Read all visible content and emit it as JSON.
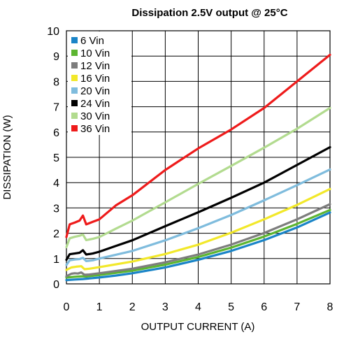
{
  "chart_data": {
    "type": "line",
    "title": "Dissipation 2.5V output @ 25°C",
    "xlabel": "OUTPUT CURRENT (A)",
    "ylabel": "DISSIPATION (W)",
    "xlim": [
      0,
      8
    ],
    "ylim": [
      0,
      10
    ],
    "xticks": [
      0,
      1,
      2,
      3,
      4,
      5,
      6,
      7,
      8
    ],
    "yticks": [
      0,
      1,
      2,
      3,
      4,
      5,
      6,
      7,
      8,
      9,
      10
    ],
    "grid": true,
    "legend_position": "top-left",
    "series": [
      {
        "name": "6 Vin",
        "color": "#1a84c7",
        "points": [
          [
            0.0,
            0.15
          ],
          [
            0.25,
            0.17
          ],
          [
            0.5,
            0.19
          ],
          [
            1.0,
            0.25
          ],
          [
            1.5,
            0.33
          ],
          [
            2.0,
            0.42
          ],
          [
            3.0,
            0.65
          ],
          [
            4.0,
            0.95
          ],
          [
            5.0,
            1.3
          ],
          [
            6.0,
            1.73
          ],
          [
            7.0,
            2.23
          ],
          [
            8.0,
            2.82
          ]
        ]
      },
      {
        "name": "10 Vin",
        "color": "#5cb531",
        "points": [
          [
            0.0,
            0.25
          ],
          [
            0.25,
            0.28
          ],
          [
            0.5,
            0.3
          ],
          [
            0.6,
            0.29
          ],
          [
            1.0,
            0.35
          ],
          [
            2.0,
            0.52
          ],
          [
            3.0,
            0.76
          ],
          [
            4.0,
            1.06
          ],
          [
            5.0,
            1.43
          ],
          [
            6.0,
            1.87
          ],
          [
            7.0,
            2.37
          ],
          [
            8.0,
            2.92
          ]
        ]
      },
      {
        "name": "12 Vin",
        "color": "#7d7d7d",
        "points": [
          [
            0.0,
            0.3
          ],
          [
            0.15,
            0.4
          ],
          [
            0.25,
            0.42
          ],
          [
            0.35,
            0.41
          ],
          [
            0.45,
            0.45
          ],
          [
            0.55,
            0.36
          ],
          [
            0.7,
            0.37
          ],
          [
            1.0,
            0.42
          ],
          [
            2.0,
            0.6
          ],
          [
            3.0,
            0.85
          ],
          [
            4.0,
            1.16
          ],
          [
            5.0,
            1.55
          ],
          [
            6.0,
            2.01
          ],
          [
            7.0,
            2.55
          ],
          [
            8.0,
            3.15
          ]
        ]
      },
      {
        "name": "16 Vin",
        "color": "#f2e82a",
        "points": [
          [
            0.0,
            0.55
          ],
          [
            0.15,
            0.65
          ],
          [
            0.3,
            0.68
          ],
          [
            0.45,
            0.7
          ],
          [
            0.55,
            0.58
          ],
          [
            0.7,
            0.6
          ],
          [
            1.0,
            0.66
          ],
          [
            2.0,
            0.88
          ],
          [
            3.0,
            1.18
          ],
          [
            4.0,
            1.55
          ],
          [
            5.0,
            2.02
          ],
          [
            6.0,
            2.55
          ],
          [
            7.0,
            3.12
          ],
          [
            8.0,
            3.75
          ]
        ]
      },
      {
        "name": "20 Vin",
        "color": "#7fbcdd",
        "points": [
          [
            0.0,
            0.75
          ],
          [
            0.1,
            0.93
          ],
          [
            0.25,
            0.96
          ],
          [
            0.4,
            0.98
          ],
          [
            0.5,
            1.03
          ],
          [
            0.6,
            0.9
          ],
          [
            0.8,
            0.93
          ],
          [
            1.0,
            1.0
          ],
          [
            2.0,
            1.3
          ],
          [
            3.0,
            1.72
          ],
          [
            4.0,
            2.2
          ],
          [
            5.0,
            2.72
          ],
          [
            6.0,
            3.3
          ],
          [
            7.0,
            3.9
          ],
          [
            8.0,
            4.52
          ]
        ]
      },
      {
        "name": "24 Vin",
        "color": "#000000",
        "points": [
          [
            0.0,
            0.95
          ],
          [
            0.1,
            1.17
          ],
          [
            0.25,
            1.2
          ],
          [
            0.4,
            1.23
          ],
          [
            0.5,
            1.33
          ],
          [
            0.6,
            1.16
          ],
          [
            0.8,
            1.2
          ],
          [
            1.0,
            1.27
          ],
          [
            1.5,
            1.5
          ],
          [
            2.0,
            1.72
          ],
          [
            3.0,
            2.28
          ],
          [
            4.0,
            2.83
          ],
          [
            5.0,
            3.4
          ],
          [
            6.0,
            4.0
          ],
          [
            7.0,
            4.7
          ],
          [
            8.0,
            5.4
          ]
        ]
      },
      {
        "name": "30 Vin",
        "color": "#b2db8f",
        "points": [
          [
            0.0,
            1.45
          ],
          [
            0.1,
            1.8
          ],
          [
            0.25,
            1.86
          ],
          [
            0.4,
            1.9
          ],
          [
            0.5,
            1.95
          ],
          [
            0.6,
            1.73
          ],
          [
            0.8,
            1.78
          ],
          [
            1.0,
            1.85
          ],
          [
            1.5,
            2.18
          ],
          [
            2.0,
            2.5
          ],
          [
            3.0,
            3.22
          ],
          [
            4.0,
            3.95
          ],
          [
            5.0,
            4.66
          ],
          [
            6.0,
            5.38
          ],
          [
            7.0,
            6.13
          ],
          [
            8.0,
            6.95
          ]
        ]
      },
      {
        "name": "36 Vin",
        "color": "#ee1b1b",
        "points": [
          [
            0.0,
            1.85
          ],
          [
            0.1,
            2.35
          ],
          [
            0.25,
            2.42
          ],
          [
            0.4,
            2.5
          ],
          [
            0.5,
            2.7
          ],
          [
            0.6,
            2.35
          ],
          [
            0.8,
            2.45
          ],
          [
            1.0,
            2.55
          ],
          [
            1.5,
            3.1
          ],
          [
            2.0,
            3.5
          ],
          [
            3.0,
            4.5
          ],
          [
            4.0,
            5.35
          ],
          [
            5.0,
            6.1
          ],
          [
            6.0,
            6.95
          ],
          [
            7.0,
            8.0
          ],
          [
            8.0,
            9.05
          ]
        ]
      }
    ]
  }
}
